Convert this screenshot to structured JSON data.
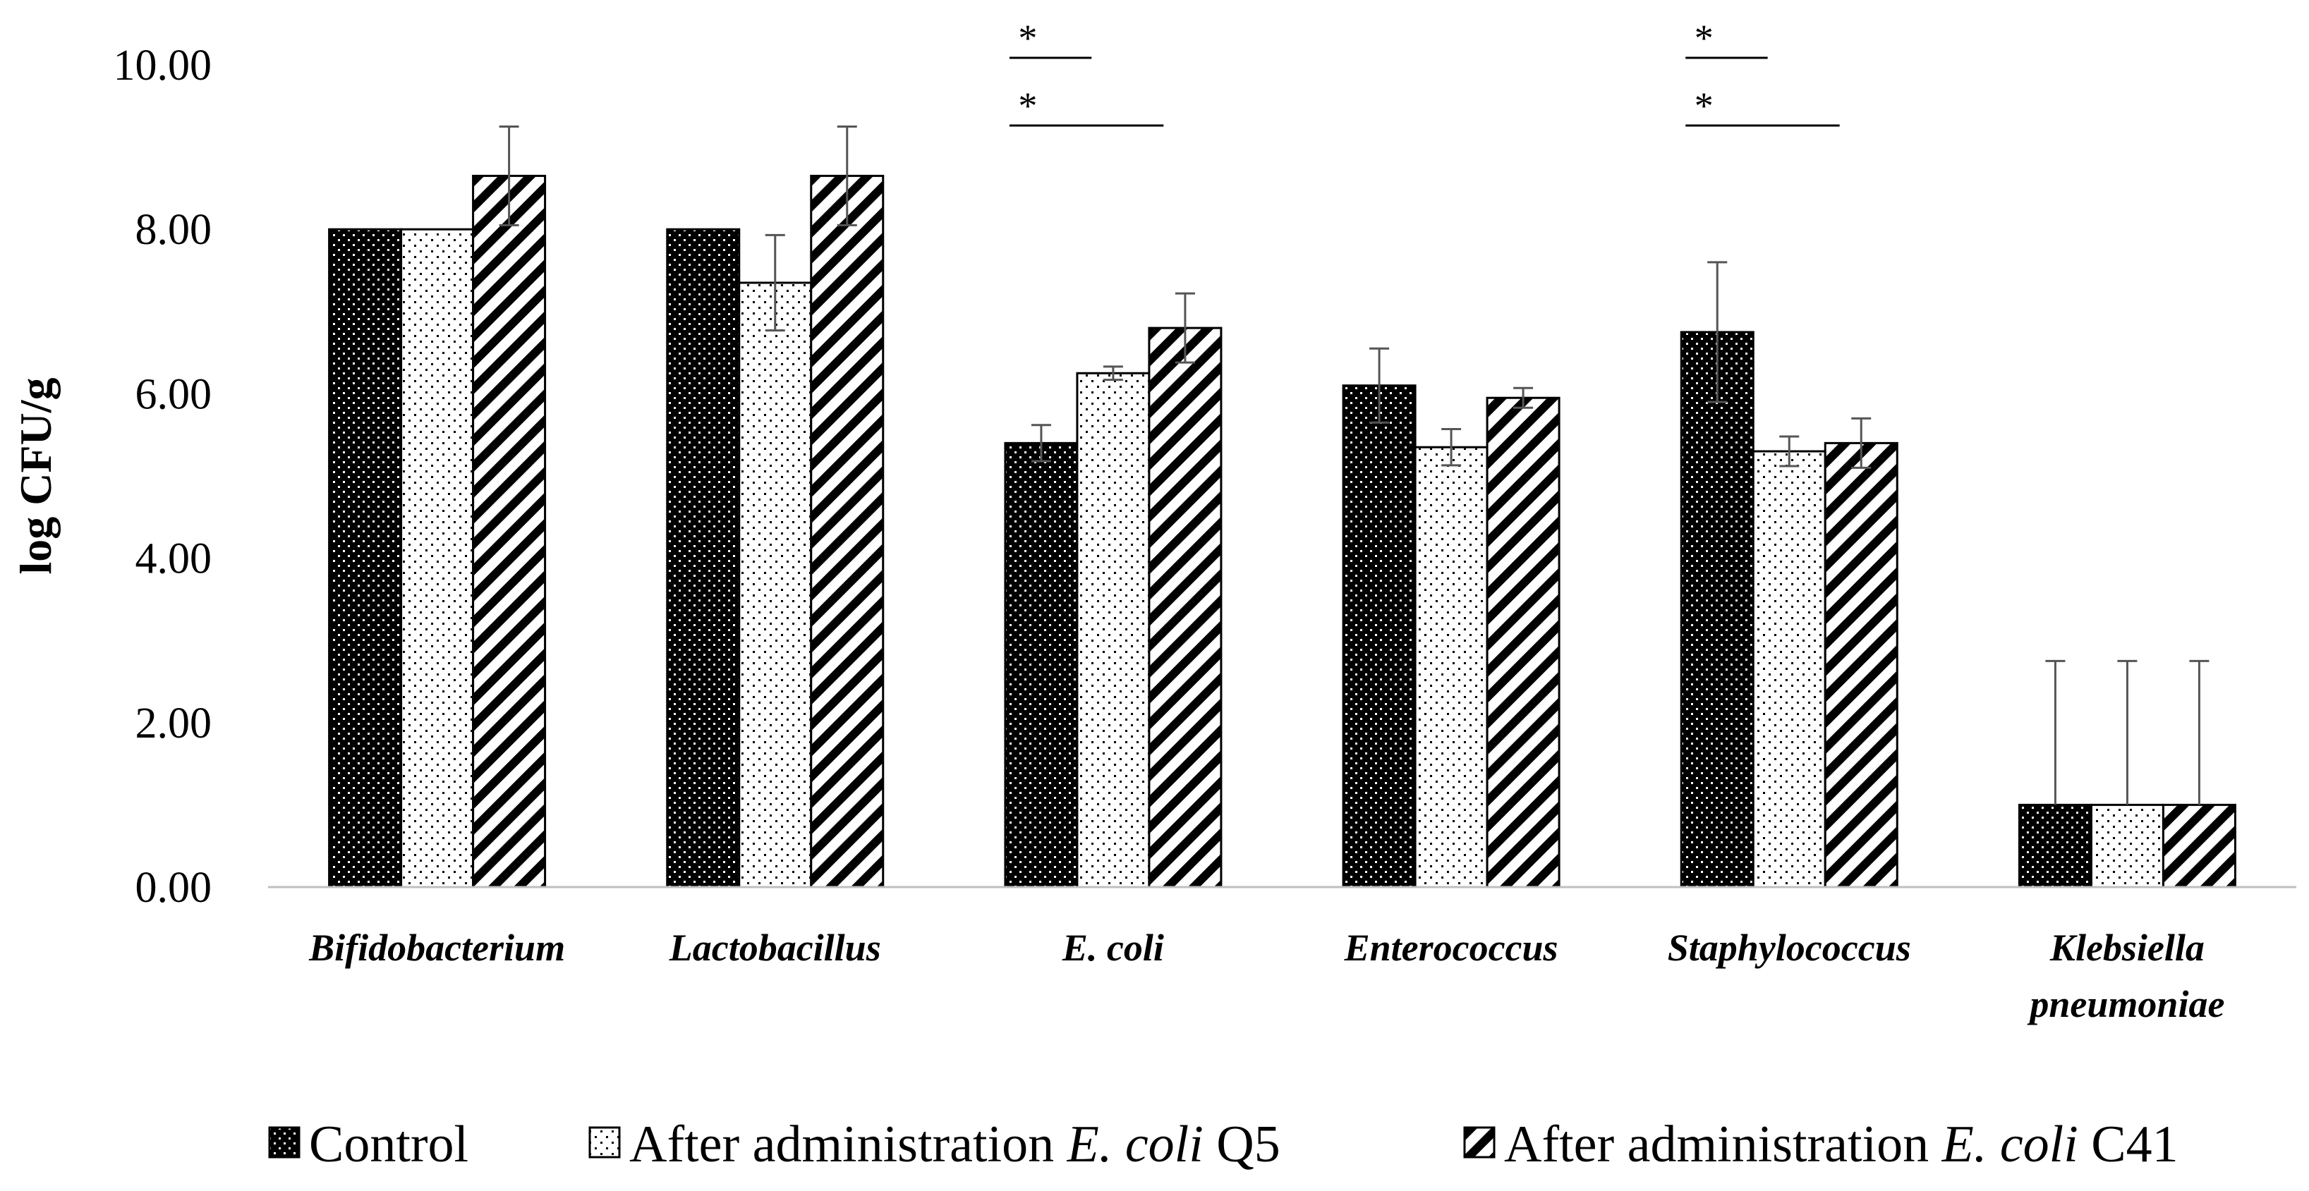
{
  "chart_data": {
    "type": "bar",
    "title": "",
    "xlabel": "",
    "ylabel": "log CFU/g",
    "ylim": [
      0,
      10
    ],
    "y_ticks": [
      "0.00",
      "2.00",
      "4.00",
      "6.00",
      "8.00",
      "10.00"
    ],
    "categories": [
      {
        "line1": "Bifidobacterium",
        "line2": ""
      },
      {
        "line1": "Lactobacillus",
        "line2": ""
      },
      {
        "line1": "E. coli",
        "line2": ""
      },
      {
        "line1": "Enterococcus",
        "line2": ""
      },
      {
        "line1": "Staphylococcus",
        "line2": ""
      },
      {
        "line1": "Klebsiella",
        "line2": "pneumoniae"
      }
    ],
    "series": [
      {
        "name": "Control",
        "pattern": "dark-dots",
        "legend": {
          "prefix": "Control",
          "italic": "",
          "suffix": ""
        },
        "values": [
          8.0,
          8.0,
          5.4,
          6.1,
          6.75,
          1.0
        ],
        "errors": [
          0,
          0,
          0.22,
          0.45,
          0.85,
          1.75
        ]
      },
      {
        "name": "After administration E. coli Q5",
        "pattern": "light-dots",
        "legend": {
          "prefix": "After administration ",
          "italic": "E. coli",
          "suffix": " Q5"
        },
        "values": [
          8.0,
          7.35,
          6.25,
          5.35,
          5.3,
          1.0
        ],
        "errors": [
          0,
          0.58,
          0.08,
          0.22,
          0.18,
          1.75
        ]
      },
      {
        "name": "After administration E. coli C41",
        "pattern": "diagonal",
        "legend": {
          "prefix": "After administration ",
          "italic": "E. coli",
          "suffix": " C41"
        },
        "values": [
          8.65,
          8.65,
          6.8,
          5.95,
          5.4,
          1.0
        ],
        "errors": [
          0.6,
          0.6,
          0.42,
          0.12,
          0.3,
          1.75
        ]
      }
    ],
    "significance": [
      {
        "category_index": 2,
        "from_series": 0,
        "to_series": 1,
        "label": "*",
        "level": 1
      },
      {
        "category_index": 2,
        "from_series": 0,
        "to_series": 2,
        "label": "*",
        "level": 0
      },
      {
        "category_index": 4,
        "from_series": 0,
        "to_series": 1,
        "label": "*",
        "level": 1
      },
      {
        "category_index": 4,
        "from_series": 0,
        "to_series": 2,
        "label": "*",
        "level": 0
      }
    ],
    "legend_position": "bottom",
    "grid": false
  }
}
